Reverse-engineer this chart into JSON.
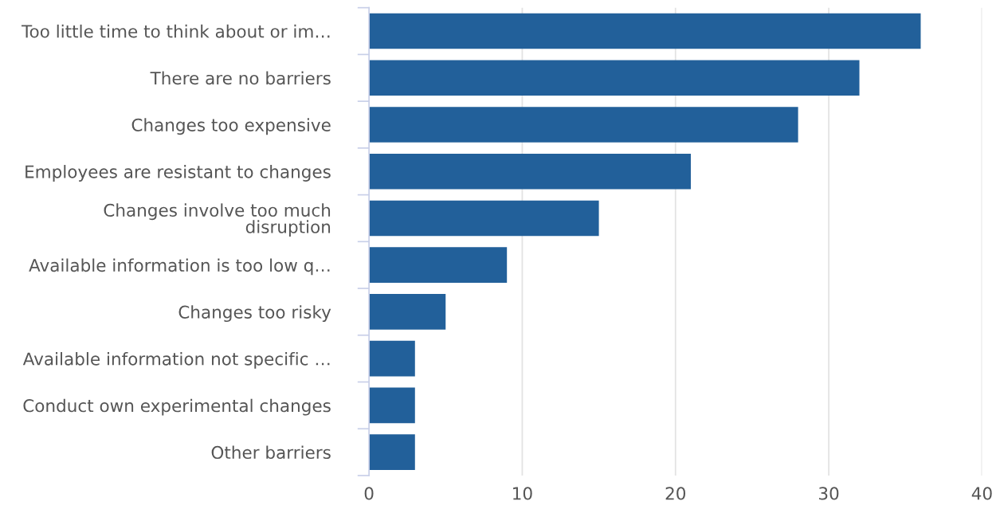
{
  "chart_data": {
    "type": "bar",
    "orientation": "horizontal",
    "categories": [
      "Too little time to think about or im…",
      "There are no barriers",
      "Changes too expensive",
      "Employees are resistant to changes",
      "Changes involve too much\ndisruption",
      "Available information is too low q…",
      "Changes too risky",
      "Available information not specific …",
      "Conduct own experimental changes",
      "Other barriers"
    ],
    "values": [
      36,
      32,
      28,
      21,
      15,
      9,
      5,
      3,
      3,
      3
    ],
    "color": "#22609a",
    "xlim": [
      0,
      40
    ],
    "xticks": [
      0,
      10,
      20,
      30,
      40
    ],
    "grid": "x"
  }
}
